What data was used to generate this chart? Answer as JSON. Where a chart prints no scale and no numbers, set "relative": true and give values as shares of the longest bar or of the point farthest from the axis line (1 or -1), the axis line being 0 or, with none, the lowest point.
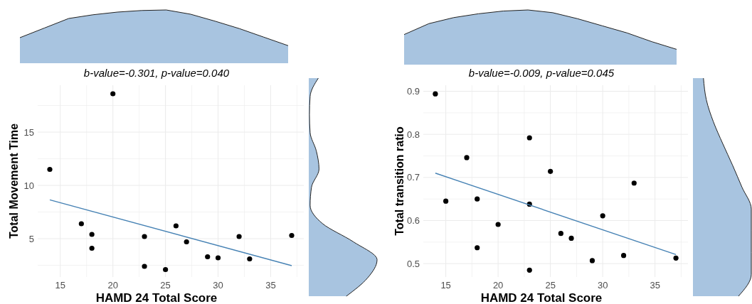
{
  "chart_data": [
    {
      "type": "area",
      "relative": true,
      "categories": [
        null,
        null,
        null,
        null,
        null,
        null,
        null,
        null,
        null,
        null,
        null,
        null
      ],
      "series": [
        {
          "color": "#a8c4e0",
          "values": [
            0.48,
            0.66,
            0.84,
            0.91,
            0.96,
            0.99,
            1.0,
            0.92,
            0.79,
            0.65,
            0.49,
            0.33
          ]
        }
      ]
    },
    {
      "type": "scatter",
      "title": "b-value=-0.301, p-value=0.040",
      "xlabel": "HAMD 24 Total Score",
      "ylabel": "Total Movement Time",
      "xlim": [
        12.85,
        38.15
      ],
      "ylim": [
        1.4,
        19.4
      ],
      "xticks": [
        15,
        {
          "value": 17.5,
          "label": null
        },
        20,
        {
          "value": 22.5,
          "label": null
        },
        25,
        {
          "value": 27.5,
          "label": null
        },
        30,
        {
          "value": 32.5,
          "label": null
        },
        35,
        {
          "value": 37.5,
          "label": null
        }
      ],
      "yticks": [
        {
          "value": 2.5,
          "label": null
        },
        5,
        {
          "value": 7.5,
          "label": null
        },
        10,
        {
          "value": 12.5,
          "label": null
        },
        15,
        {
          "value": 17.5,
          "label": null
        }
      ],
      "grid": true,
      "series": [
        {
          "type": "scatter",
          "color": "#000000",
          "marker": "circle",
          "x": [
            14,
            17,
            18,
            18,
            20,
            23,
            23,
            25,
            26,
            27,
            29,
            30,
            32,
            33,
            37
          ],
          "values": [
            11.5,
            6.4,
            5.4,
            4.1,
            18.6,
            5.2,
            2.4,
            2.1,
            6.2,
            4.7,
            3.3,
            3.2,
            5.2,
            3.1,
            5.3
          ]
        },
        {
          "type": "line",
          "color": "#4682b4",
          "x": [
            14,
            37
          ],
          "values": [
            8.64,
            2.47
          ]
        }
      ]
    },
    {
      "type": "area",
      "relative": true,
      "categories": [
        null,
        null,
        null,
        null,
        null,
        null,
        null,
        null,
        null,
        null,
        null,
        null
      ],
      "series": [
        {
          "color": "#a8c4e0",
          "values": [
            0.55,
            0.75,
            0.86,
            0.93,
            0.98,
            1.0,
            0.95,
            0.84,
            0.71,
            0.58,
            0.42,
            0.28
          ]
        }
      ]
    },
    {
      "type": "scatter",
      "title": "b-value=-0.009, p-value=0.045",
      "xlabel": "HAMD 24 Total Score",
      "ylabel": "Total transition ratio",
      "xlim": [
        12.85,
        38.15
      ],
      "ylim": [
        0.469,
        0.914
      ],
      "xticks": [
        15,
        {
          "value": 17.5,
          "label": null
        },
        20,
        {
          "value": 22.5,
          "label": null
        },
        25,
        {
          "value": 27.5,
          "label": null
        },
        30,
        {
          "value": 32.5,
          "label": null
        },
        35,
        {
          "value": 37.5,
          "label": null
        }
      ],
      "yticks": [
        0.5,
        {
          "value": 0.55,
          "label": null
        },
        0.6,
        {
          "value": 0.65,
          "label": null
        },
        0.7,
        {
          "value": 0.75,
          "label": null
        },
        0.8,
        {
          "value": 0.85,
          "label": null
        },
        0.9
      ],
      "grid": true,
      "series": [
        {
          "type": "scatter",
          "color": "#000000",
          "marker": "circle",
          "x": [
            14,
            15,
            17,
            18,
            18,
            20,
            23,
            23,
            23,
            25,
            26,
            27,
            29,
            30,
            32,
            33,
            37
          ],
          "values": [
            0.894,
            0.645,
            0.746,
            0.65,
            0.537,
            0.591,
            0.792,
            0.638,
            0.485,
            0.714,
            0.57,
            0.559,
            0.507,
            0.611,
            0.519,
            0.687,
            0.513
          ]
        },
        {
          "type": "line",
          "color": "#4682b4",
          "x": [
            14,
            37
          ],
          "values": [
            0.71,
            0.521
          ]
        }
      ]
    }
  ]
}
